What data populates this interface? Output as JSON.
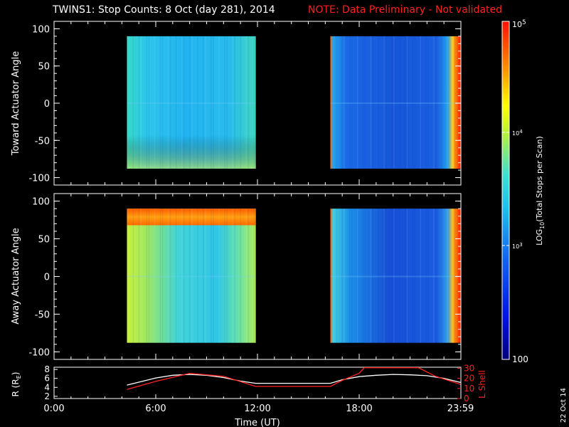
{
  "title": "TWINS1: Stop Counts:  8 Oct (day 281), 2014",
  "note": "NOTE: Data Preliminary - Not validated",
  "side_date": "22 Oct 14",
  "colors": {
    "background": "#000000",
    "note": "#ff2020",
    "axes": "#ffffff",
    "r_line": "#ffffff",
    "lshell_line": "#ff2020"
  },
  "chart_data": [
    {
      "type": "heatmap",
      "panel": "top",
      "ylabel": "Toward Actuator Angle",
      "ylim": [
        -110,
        110
      ],
      "yticks": [
        "100",
        "50",
        "0",
        "-50",
        "-100"
      ],
      "xlim": [
        0,
        24
      ],
      "data_blocks": [
        {
          "start_ut": 4.3,
          "end_ut": 11.9,
          "angle_range": [
            -88,
            90
          ],
          "dominant_color": "#1fb8ee"
        },
        {
          "start_ut": 16.3,
          "end_ut": 23.98,
          "angle_range": [
            -88,
            90
          ],
          "dominant_color": "#1a5ee0"
        }
      ]
    },
    {
      "type": "heatmap",
      "panel": "bottom",
      "ylabel": "Away Actuator Angle",
      "ylim": [
        -110,
        110
      ],
      "yticks": [
        "100",
        "50",
        "0",
        "-50",
        "-100"
      ],
      "xlim": [
        0,
        24
      ],
      "data_blocks": [
        {
          "start_ut": 4.3,
          "end_ut": 11.9,
          "angle_range": [
            -88,
            90
          ],
          "dominant_color": "#4fd6c8"
        },
        {
          "start_ut": 16.3,
          "end_ut": 23.98,
          "angle_range": [
            -88,
            90
          ],
          "dominant_color": "#1a5ee0"
        }
      ]
    },
    {
      "type": "line",
      "panel": "ephemeris",
      "xlabel": "Time (UT)",
      "xticks": [
        "0:00",
        "6:00",
        "12:00",
        "18:00",
        "23:59"
      ],
      "xtick_values": [
        0,
        6,
        12,
        18,
        23.98
      ],
      "ylabel_left": "R (R",
      "ylabel_left_sub": "E",
      "ylabel_left_end": ")",
      "ylabel_right": "L Shell",
      "yticks_left": [
        "8",
        "6",
        "4",
        "2"
      ],
      "yticks_right": [
        "30",
        "20",
        "10",
        "0"
      ],
      "ylim_left": [
        1.5,
        8.5
      ],
      "ylim_right": [
        0,
        31
      ],
      "series": [
        {
          "name": "R (R",
          "axis": "left",
          "x": [
            4.3,
            6,
            7,
            8,
            9,
            10,
            11,
            11.9,
            14,
            16.3,
            17,
            18,
            19,
            20,
            21,
            22,
            23,
            23.98
          ],
          "y": [
            4.5,
            6.1,
            6.7,
            6.9,
            6.7,
            6.2,
            5.4,
            4.9,
            4.9,
            4.9,
            5.7,
            6.4,
            6.7,
            6.9,
            6.8,
            6.6,
            6.0,
            5.1
          ]
        },
        {
          "name": "L Shell",
          "axis": "right",
          "x": [
            4.3,
            6,
            8,
            10,
            11.9,
            14,
            16.3,
            17,
            18,
            18.3,
            21.5,
            22.5,
            23.98
          ],
          "y": [
            9,
            17,
            25,
            22,
            12,
            12,
            12,
            18,
            25,
            30.5,
            30.5,
            22,
            14
          ]
        }
      ]
    }
  ],
  "colorbar": {
    "label": "LOG",
    "label_sub": "10",
    "label_rest": "(Total Stops per Scan)",
    "scale": "log",
    "range": [
      100,
      100000
    ],
    "tick_top_base": "10",
    "tick_top_exp": "5",
    "tick_mid_base": "10",
    "tick_mid_exp": "4",
    "tick_low_base": "10",
    "tick_low_exp": "3",
    "tick_bottom": "100"
  }
}
